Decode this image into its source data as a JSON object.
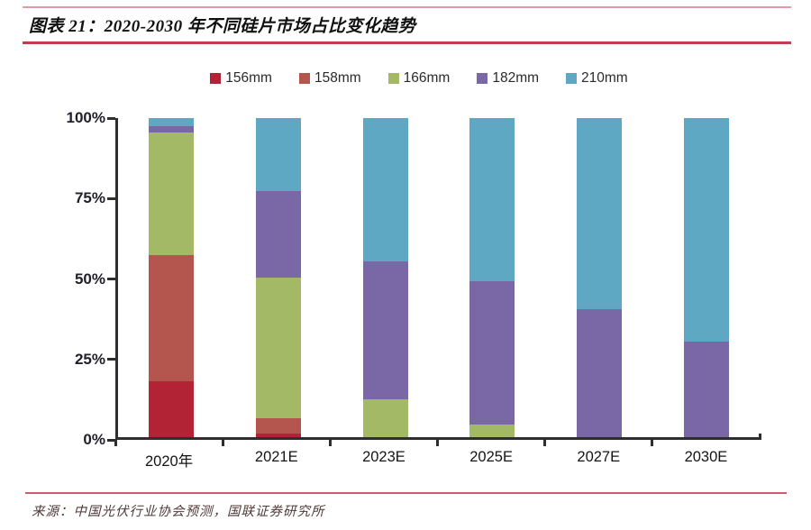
{
  "header": {
    "title": "图表 21：2020-2030 年不同硅片市场占比变化趋势"
  },
  "footer": {
    "source": "来源：中国光伏行业协会预测，国联证券研究所"
  },
  "colors": {
    "rule_top": "#e59aa3",
    "rule_title": "#c43b4c",
    "rule_bottom": "#cd5f6b",
    "axis": "#2e2e2e",
    "title_text": "#101010",
    "source_text": "#503a3a"
  },
  "chart_data": {
    "type": "bar",
    "stacked": true,
    "title": "2020-2030 年不同硅片市场占比变化趋势",
    "categories": [
      "2020年",
      "2021E",
      "2023E",
      "2025E",
      "2027E",
      "2030E"
    ],
    "series": [
      {
        "name": "156mm",
        "color": "#b22335",
        "values": [
          17.5,
          1,
          0,
          0,
          0,
          0
        ]
      },
      {
        "name": "158mm",
        "color": "#b4564e",
        "values": [
          39.5,
          5,
          0,
          0,
          0,
          0
        ]
      },
      {
        "name": "166mm",
        "color": "#a4b965",
        "values": [
          38.5,
          44,
          12,
          4,
          0,
          0
        ]
      },
      {
        "name": "182mm",
        "color": "#7a68a6",
        "values": [
          2,
          27,
          43,
          45,
          40,
          30
        ]
      },
      {
        "name": "210mm",
        "color": "#5fa8c4",
        "values": [
          2.5,
          23,
          45,
          51,
          60,
          70
        ]
      }
    ],
    "xlabel": "",
    "ylabel": "",
    "ylim": [
      0,
      100
    ],
    "y_ticks": [
      "100%",
      "75%",
      "50%",
      "25%",
      "0%"
    ],
    "y_tick_values": [
      100,
      75,
      50,
      25,
      0
    ],
    "grid": false,
    "legend_position": "top"
  }
}
